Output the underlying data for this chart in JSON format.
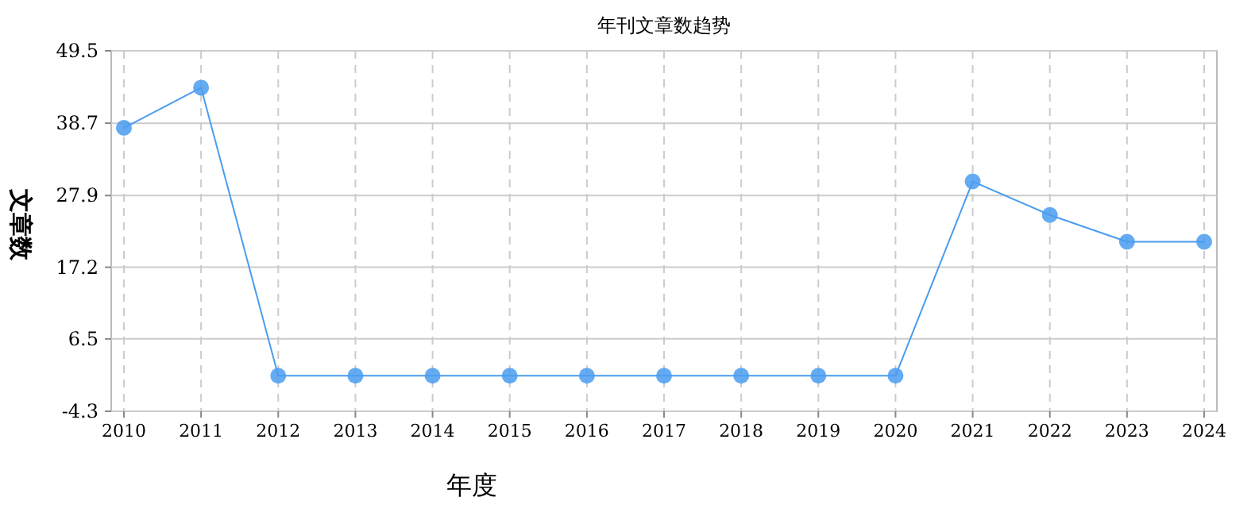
{
  "chart_data": {
    "type": "line",
    "title": "年刊文章数趋势",
    "xlabel": "年度",
    "ylabel": "文章数",
    "categories": [
      "2010",
      "2011",
      "2012",
      "2013",
      "2014",
      "2015",
      "2016",
      "2017",
      "2018",
      "2019",
      "2020",
      "2021",
      "2022",
      "2023",
      "2024"
    ],
    "series": [
      {
        "color": "#4a9cf0",
        "values": [
          38,
          44,
          1,
          1,
          1,
          1,
          1,
          1,
          1,
          1,
          1,
          30,
          25,
          21,
          21
        ]
      }
    ],
    "ylim": [
      -4.3,
      49.5
    ],
    "yticks": [
      -4.3,
      6.5,
      17.2,
      27.9,
      38.7,
      49.5
    ],
    "grid": true,
    "marker": "circle"
  }
}
